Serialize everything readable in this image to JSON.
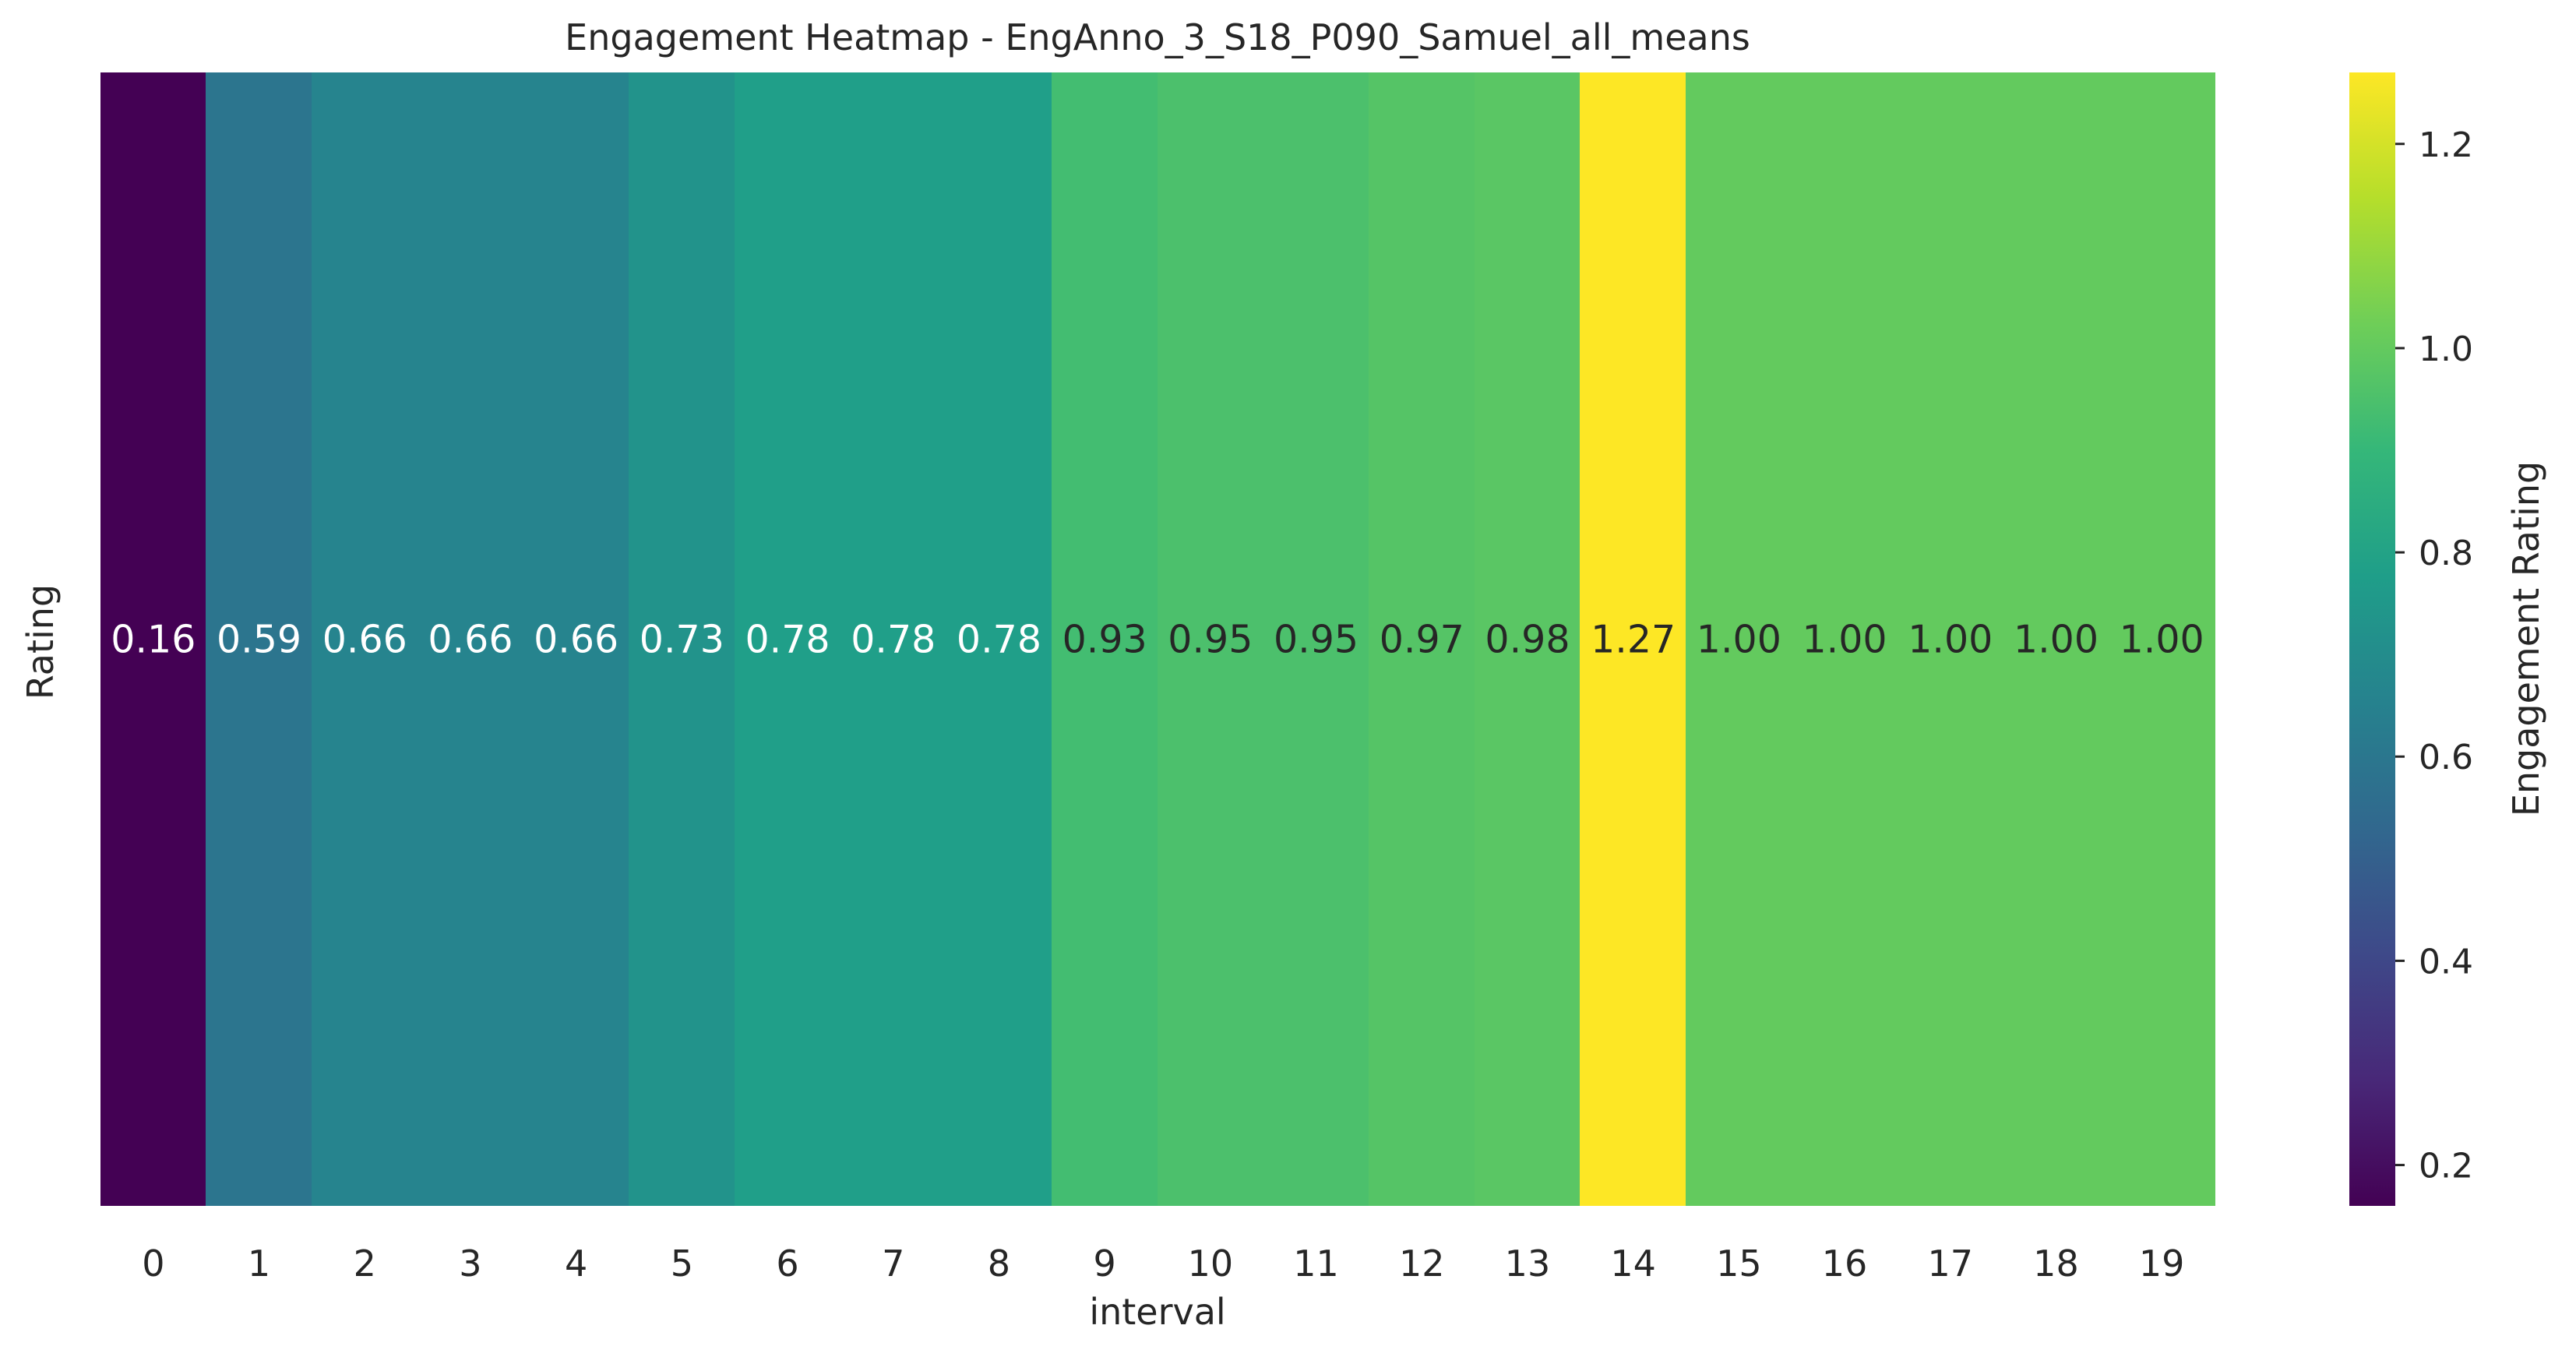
{
  "chart_data": {
    "type": "heatmap",
    "title": "Engagement Heatmap -  EngAnno_3_S18_P090_Samuel_all_means",
    "xlabel": "interval",
    "ylabel": "Rating",
    "categories": [
      "0",
      "1",
      "2",
      "3",
      "4",
      "5",
      "6",
      "7",
      "8",
      "9",
      "10",
      "11",
      "12",
      "13",
      "14",
      "15",
      "16",
      "17",
      "18",
      "19"
    ],
    "values": [
      0.16,
      0.59,
      0.66,
      0.66,
      0.66,
      0.73,
      0.78,
      0.78,
      0.78,
      0.93,
      0.95,
      0.95,
      0.97,
      0.98,
      1.27,
      1.0,
      1.0,
      1.0,
      1.0,
      1.0
    ],
    "cell_labels": [
      "0.16",
      "0.59",
      "0.66",
      "0.66",
      "0.66",
      "0.73",
      "0.78",
      "0.78",
      "0.78",
      "0.93",
      "0.95",
      "0.95",
      "0.97",
      "0.98",
      "1.27",
      "1.00",
      "1.00",
      "1.00",
      "1.00",
      "1.00"
    ],
    "colorbar": {
      "label": "Engagement Rating",
      "range": [
        0.16,
        1.27
      ],
      "ticks": [
        0.2,
        0.4,
        0.6,
        0.8,
        1.0,
        1.2
      ],
      "tick_labels": [
        "0.2",
        "0.4",
        "0.6",
        "0.8",
        "1.0",
        "1.2"
      ]
    },
    "colormap": "viridis",
    "colormap_stops": [
      "#440154",
      "#482878",
      "#3e4989",
      "#31688e",
      "#26828e",
      "#1f9e89",
      "#35b779",
      "#6ece58",
      "#b5de2b",
      "#fde725"
    ]
  }
}
